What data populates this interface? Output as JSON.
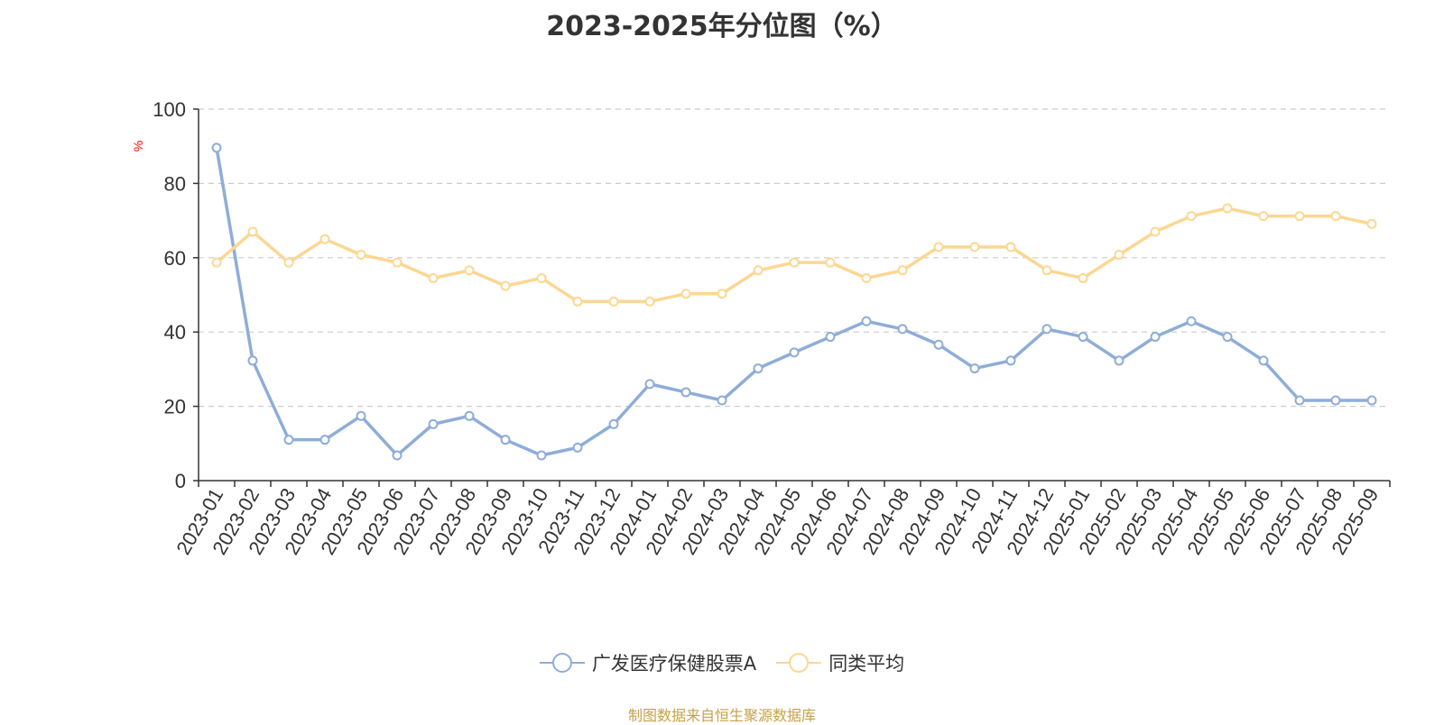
{
  "chart_data": {
    "type": "line",
    "title": "2023-2025年分位图（%）",
    "ylabel": "%",
    "xlabel": "",
    "ylim": [
      0,
      100
    ],
    "yticks": [
      0,
      20,
      40,
      60,
      80,
      100
    ],
    "grid": true,
    "legend_position": "bottom",
    "categories": [
      "2023-01",
      "2023-02",
      "2023-03",
      "2023-04",
      "2023-05",
      "2023-06",
      "2023-07",
      "2023-08",
      "2023-09",
      "2023-10",
      "2023-11",
      "2023-12",
      "2024-01",
      "2024-02",
      "2024-03",
      "2024-04",
      "2024-05",
      "2024-06",
      "2024-07",
      "2024-08",
      "2024-09",
      "2024-10",
      "2024-11",
      "2024-12",
      "2025-01",
      "2025-02",
      "2025-03",
      "2025-04",
      "2025-05",
      "2025-06",
      "2025-07",
      "2025-08",
      "2025-09"
    ],
    "series": [
      {
        "name": "广发医疗保健股票A",
        "color": "#8eadd8",
        "values": [
          89.6,
          32.3,
          11.0,
          11.0,
          17.4,
          6.8,
          15.2,
          17.4,
          11.0,
          6.8,
          8.9,
          15.2,
          26.0,
          23.8,
          21.6,
          30.2,
          34.5,
          38.7,
          42.9,
          40.8,
          36.6,
          30.2,
          32.3,
          40.8,
          38.7,
          32.3,
          38.7,
          42.9,
          38.7,
          32.3,
          21.6,
          21.6,
          21.6
        ]
      },
      {
        "name": "同类平均",
        "color": "#fcd793",
        "values": [
          58.7,
          67.0,
          58.7,
          65.0,
          60.8,
          58.7,
          54.5,
          56.6,
          52.4,
          54.5,
          48.2,
          48.2,
          48.2,
          50.3,
          50.3,
          56.6,
          58.7,
          58.7,
          54.5,
          56.6,
          62.9,
          62.9,
          62.9,
          56.6,
          54.5,
          60.8,
          67.0,
          71.2,
          73.3,
          71.2,
          71.2,
          71.2,
          69.1
        ]
      }
    ]
  },
  "legend": {
    "items": [
      {
        "label": "广发医疗保健股票A",
        "color": "#8eadd8"
      },
      {
        "label": "同类平均",
        "color": "#fcd793"
      }
    ]
  },
  "footer": {
    "source": "制图数据来自恒生聚源数据库"
  },
  "colors": {
    "axis": "#333333",
    "grid": "#cccccc",
    "ylabel": "#ff0000",
    "source": "#c8a04a"
  }
}
